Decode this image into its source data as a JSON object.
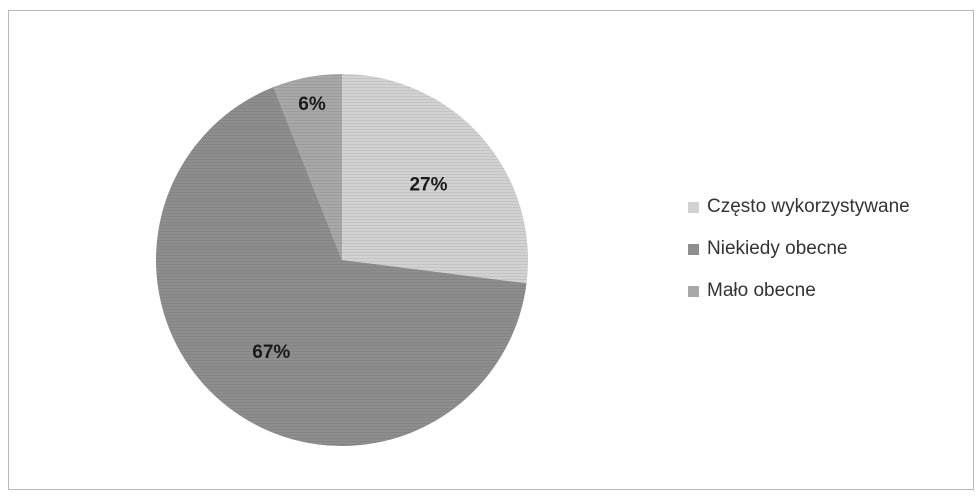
{
  "chart_data": {
    "type": "pie",
    "categories": [
      "Często wykorzystywane",
      "Niekiedy obecne",
      "Mało obecne"
    ],
    "series": [
      {
        "values": [
          27,
          67,
          6
        ]
      }
    ],
    "data_labels": [
      "27%",
      "67%",
      "6%"
    ],
    "title": "",
    "legend_position": "right",
    "colors": [
      "#d2d2d2",
      "#8e8e8e",
      "#a8a8a8"
    ]
  }
}
